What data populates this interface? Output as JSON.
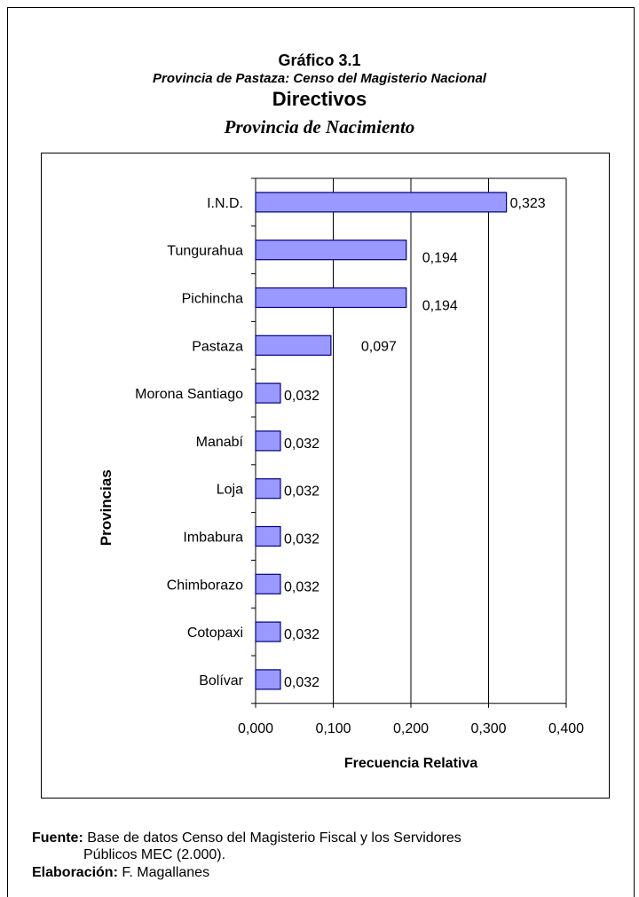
{
  "chart_data": {
    "type": "bar",
    "orientation": "horizontal",
    "title": "Gráfico 3.1",
    "subtitle": "Provincia de Pastaza: Censo del Magisterio Nacional",
    "title2": "Directivos",
    "subtitle2": "Provincia de Nacimiento",
    "categories": [
      "I.N.D.",
      "Tungurahua",
      "Pichincha",
      "Pastaza",
      "Morona Santiago",
      "Manabí",
      "Loja",
      "Imbabura",
      "Chimborazo",
      "Cotopaxi",
      "Bolívar"
    ],
    "values": [
      0.323,
      0.194,
      0.194,
      0.097,
      0.032,
      0.032,
      0.032,
      0.032,
      0.032,
      0.032,
      0.032
    ],
    "value_labels": [
      "0,323",
      "0,194",
      "0,194",
      "0,097",
      "0,032",
      "0,032",
      "0,032",
      "0,032",
      "0,032",
      "0,032",
      "0,032"
    ],
    "xlabel": "Frecuencia Relativa",
    "ylabel": "Provincias",
    "xlim": [
      0,
      0.4
    ],
    "xticks": [
      0,
      0.1,
      0.2,
      0.3,
      0.4
    ],
    "xtick_labels": [
      "0,000",
      "0,100",
      "0,200",
      "0,300",
      "0,400"
    ],
    "grid": "vertical",
    "bar_color": "#9999ff",
    "bar_edge_color": "#000080"
  },
  "footer": {
    "source_label": "Fuente:",
    "source_text": "Base de datos Censo del Magisterio Fiscal y los  Servidores",
    "source_text_2": "Públicos MEC (2.000).",
    "elab_label": "Elaboración:",
    "elab_text": "F. Magallanes"
  }
}
